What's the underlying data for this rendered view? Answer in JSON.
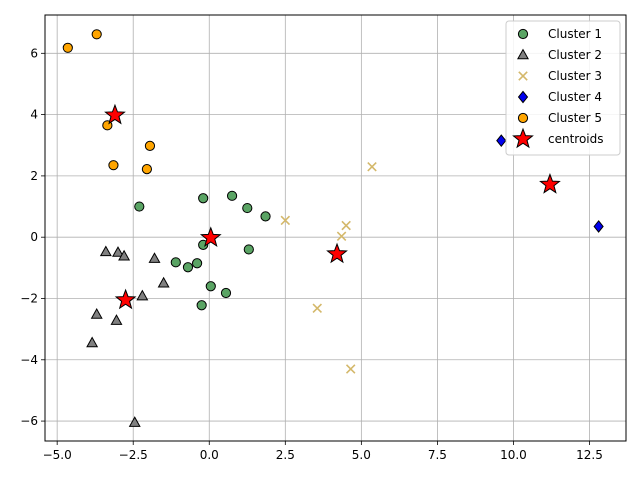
{
  "chart_data": {
    "type": "scatter",
    "xlim": [
      -5.4,
      13.7
    ],
    "ylim": [
      -6.65,
      7.25
    ],
    "x_ticks": [
      -5.0,
      -2.5,
      0.0,
      2.5,
      5.0,
      7.5,
      10.0,
      12.5
    ],
    "x_tick_labels": [
      "−5.0",
      "−2.5",
      "0.0",
      "2.5",
      "5.0",
      "7.5",
      "10.0",
      "12.5"
    ],
    "y_ticks": [
      -6,
      -4,
      -2,
      0,
      2,
      4,
      6
    ],
    "y_tick_labels": [
      "−6",
      "−4",
      "−2",
      "0",
      "2",
      "4",
      "6"
    ],
    "grid": true,
    "legend_position": "top-right",
    "series": [
      {
        "name": "Cluster 1",
        "marker": "circle",
        "color": "#5aa464",
        "points": [
          [
            -2.3,
            1.0
          ],
          [
            -0.2,
            1.27
          ],
          [
            0.75,
            1.35
          ],
          [
            1.25,
            0.95
          ],
          [
            1.85,
            0.68
          ],
          [
            1.3,
            -0.4
          ],
          [
            -0.2,
            -0.25
          ],
          [
            -1.1,
            -0.82
          ],
          [
            -0.7,
            -0.98
          ],
          [
            -0.4,
            -0.85
          ],
          [
            0.05,
            -1.6
          ],
          [
            0.55,
            -1.82
          ],
          [
            -0.25,
            -2.22
          ]
        ]
      },
      {
        "name": "Cluster 2",
        "marker": "triangle",
        "color": "#808080",
        "points": [
          [
            -3.4,
            -0.48
          ],
          [
            -3.0,
            -0.5
          ],
          [
            -2.8,
            -0.62
          ],
          [
            -1.8,
            -0.7
          ],
          [
            -1.5,
            -1.5
          ],
          [
            -2.2,
            -1.92
          ],
          [
            -3.7,
            -2.52
          ],
          [
            -3.05,
            -2.72
          ],
          [
            -3.85,
            -3.45
          ],
          [
            -2.45,
            -6.05
          ]
        ]
      },
      {
        "name": "Cluster 3",
        "marker": "x",
        "color": "#d4b86a",
        "points": [
          [
            2.5,
            0.55
          ],
          [
            4.35,
            0.03
          ],
          [
            4.5,
            0.38
          ],
          [
            5.35,
            2.3
          ],
          [
            3.55,
            -2.32
          ],
          [
            4.65,
            -4.3
          ]
        ]
      },
      {
        "name": "Cluster 4",
        "marker": "diamond",
        "color": "#0000ee",
        "points": [
          [
            9.6,
            3.15
          ],
          [
            12.8,
            0.35
          ]
        ]
      },
      {
        "name": "Cluster 5",
        "marker": "circle",
        "color": "#ffa500",
        "points": [
          [
            -4.65,
            6.18
          ],
          [
            -3.7,
            6.62
          ],
          [
            -3.35,
            3.65
          ],
          [
            -3.15,
            2.35
          ],
          [
            -1.95,
            2.98
          ],
          [
            -2.05,
            2.22
          ]
        ]
      },
      {
        "name": "centroids",
        "marker": "star",
        "color": "#ff0000",
        "points": [
          [
            -3.1,
            3.98
          ],
          [
            0.05,
            -0.02
          ],
          [
            -2.75,
            -2.05
          ],
          [
            4.2,
            -0.55
          ],
          [
            11.2,
            1.72
          ]
        ]
      }
    ]
  }
}
